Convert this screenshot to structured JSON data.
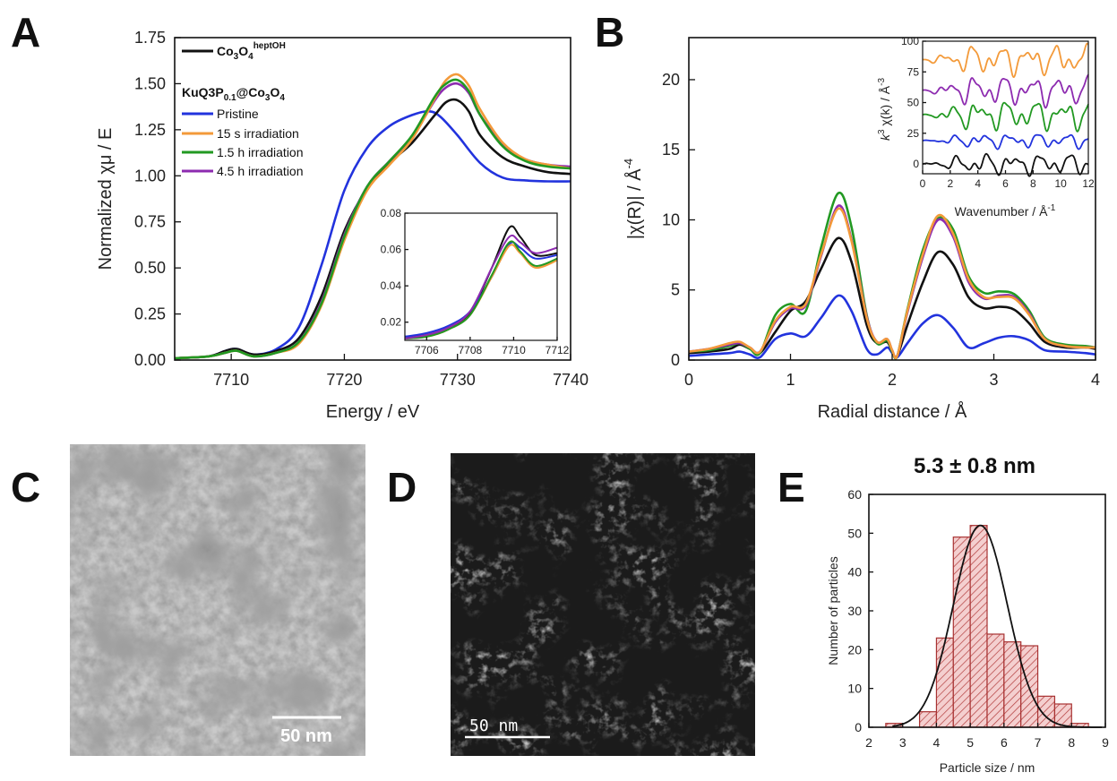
{
  "panels": {
    "A": "A",
    "B": "B",
    "C": "C",
    "D": "D",
    "E": "E"
  },
  "colors": {
    "black": "#111111",
    "blue": "#2233dd",
    "orange": "#f39a3a",
    "green": "#229922",
    "purple": "#8d2bb0",
    "hist_fill": "#f1c9c9",
    "hist_stroke": "#a83232"
  },
  "chart_data": [
    {
      "id": "A",
      "type": "line",
      "xlabel": "Energy / eV",
      "ylabel": "Normalized χμ / E",
      "xlim": [
        7705,
        7740
      ],
      "ylim": [
        0,
        1.75
      ],
      "xticks": [
        7710,
        7720,
        7730,
        7740
      ],
      "yticks": [
        0.0,
        0.25,
        0.5,
        0.75,
        1.0,
        1.25,
        1.5,
        1.75
      ],
      "ytick_labels": [
        "0.00",
        "0.25",
        "0.50",
        "0.75",
        "1.00",
        "1.25",
        "1.50",
        "1.75"
      ],
      "legend": {
        "ref_main": "Co",
        "ref_sub1": "3",
        "ref_mid": "O",
        "ref_sub2": "4",
        "ref_sup": "heptOH",
        "group_main": "KuQ3P",
        "group_sub1": "0.1",
        "group_mid": "@Co",
        "group_sub2": "3",
        "group_end": "O",
        "group_sub3": "4",
        "items": [
          "Pristine",
          "15 s irradiation",
          "1.5 h irradiation",
          "4.5 h irradiation"
        ]
      },
      "series": [
        {
          "name": "Co3O4 heptOH",
          "color": "black",
          "x": [
            7705,
            7708,
            7709.5,
            7710.5,
            7712,
            7714,
            7716,
            7718,
            7720,
            7722,
            7724,
            7726,
            7728,
            7729,
            7730,
            7731,
            7732,
            7734,
            7736,
            7738,
            7740
          ],
          "y": [
            0.01,
            0.02,
            0.05,
            0.06,
            0.03,
            0.05,
            0.12,
            0.35,
            0.7,
            0.93,
            1.07,
            1.18,
            1.33,
            1.4,
            1.41,
            1.35,
            1.22,
            1.1,
            1.05,
            1.02,
            1.01
          ]
        },
        {
          "name": "Pristine",
          "color": "blue",
          "x": [
            7705,
            7708,
            7709.5,
            7710.5,
            7712,
            7714,
            7716,
            7718,
            7720,
            7722,
            7724,
            7726,
            7727.5,
            7728.5,
            7730,
            7732,
            7734,
            7736,
            7738,
            7740
          ],
          "y": [
            0.01,
            0.02,
            0.05,
            0.06,
            0.03,
            0.06,
            0.18,
            0.52,
            0.92,
            1.15,
            1.27,
            1.33,
            1.35,
            1.32,
            1.22,
            1.07,
            0.99,
            0.975,
            0.97,
            0.97
          ]
        },
        {
          "name": "15 s irradiation",
          "color": "orange",
          "x": [
            7705,
            7708,
            7709.5,
            7710.5,
            7712,
            7714,
            7716,
            7718,
            7720,
            7722,
            7724,
            7726,
            7728,
            7729,
            7730,
            7731,
            7732,
            7734,
            7736,
            7738,
            7740
          ],
          "y": [
            0.01,
            0.02,
            0.04,
            0.05,
            0.02,
            0.04,
            0.09,
            0.3,
            0.65,
            0.92,
            1.06,
            1.2,
            1.42,
            1.52,
            1.55,
            1.49,
            1.36,
            1.18,
            1.09,
            1.06,
            1.04
          ]
        },
        {
          "name": "1.5 h irradiation",
          "color": "green",
          "x": [
            7705,
            7708,
            7709.5,
            7710.5,
            7712,
            7714,
            7716,
            7718,
            7720,
            7722,
            7724,
            7726,
            7728,
            7729,
            7730,
            7731,
            7732,
            7734,
            7736,
            7738,
            7740
          ],
          "y": [
            0.01,
            0.02,
            0.04,
            0.05,
            0.02,
            0.04,
            0.1,
            0.31,
            0.67,
            0.94,
            1.08,
            1.22,
            1.43,
            1.5,
            1.52,
            1.46,
            1.33,
            1.16,
            1.08,
            1.05,
            1.04
          ]
        },
        {
          "name": "4.5 h irradiation",
          "color": "purple",
          "x": [
            7705,
            7708,
            7709.5,
            7710.5,
            7712,
            7714,
            7716,
            7718,
            7720,
            7722,
            7724,
            7726,
            7728,
            7729,
            7730,
            7731,
            7732,
            7734,
            7736,
            7738,
            7740
          ],
          "y": [
            0.01,
            0.02,
            0.04,
            0.05,
            0.02,
            0.04,
            0.1,
            0.32,
            0.68,
            0.94,
            1.08,
            1.21,
            1.41,
            1.48,
            1.5,
            1.45,
            1.33,
            1.17,
            1.09,
            1.06,
            1.05
          ]
        }
      ],
      "inset": {
        "xlim": [
          7705,
          7712
        ],
        "ylim": [
          0.01,
          0.08
        ],
        "xticks": [
          7706,
          7708,
          7710,
          7712
        ],
        "yticks": [
          0.02,
          0.04,
          0.06,
          0.08
        ],
        "ytick_labels": [
          "0.02",
          "0.04",
          "0.06",
          "0.08"
        ],
        "series": [
          {
            "color": "black",
            "x": [
              7705,
              7706,
              7707,
              7708,
              7709,
              7709.8,
              7710.3,
              7711,
              7712
            ],
            "y": [
              0.012,
              0.013,
              0.017,
              0.025,
              0.05,
              0.072,
              0.067,
              0.057,
              0.058
            ]
          },
          {
            "color": "blue",
            "x": [
              7705,
              7706,
              7707,
              7708,
              7709,
              7709.8,
              7710.3,
              7711,
              7712
            ],
            "y": [
              0.012,
              0.014,
              0.018,
              0.026,
              0.045,
              0.063,
              0.061,
              0.055,
              0.057
            ]
          },
          {
            "color": "orange",
            "x": [
              7705,
              7706,
              7707,
              7708,
              7709,
              7709.8,
              7710.3,
              7711,
              7712
            ],
            "y": [
              0.011,
              0.012,
              0.016,
              0.024,
              0.045,
              0.062,
              0.058,
              0.05,
              0.054
            ]
          },
          {
            "color": "green",
            "x": [
              7705,
              7706,
              7707,
              7708,
              7709,
              7709.8,
              7710.3,
              7711,
              7712
            ],
            "y": [
              0.011,
              0.012,
              0.016,
              0.024,
              0.046,
              0.064,
              0.059,
              0.051,
              0.055
            ]
          },
          {
            "color": "purple",
            "x": [
              7705,
              7706,
              7707,
              7708,
              7709,
              7709.8,
              7710.3,
              7711,
              7712
            ],
            "y": [
              0.011,
              0.013,
              0.017,
              0.026,
              0.05,
              0.067,
              0.064,
              0.058,
              0.061
            ]
          }
        ]
      }
    },
    {
      "id": "B",
      "type": "line",
      "xlabel": "Radial distance / Å",
      "ylabel_main": "|χ(R)| / Å",
      "ylabel_sup": "-4",
      "xlim": [
        0,
        4
      ],
      "ylim": [
        0,
        23
      ],
      "xticks": [
        0,
        1,
        2,
        3,
        4
      ],
      "yticks": [
        0,
        5,
        10,
        15,
        20
      ],
      "series": [
        {
          "name": "black",
          "color": "black",
          "x": [
            0,
            0.2,
            0.4,
            0.5,
            0.6,
            0.7,
            0.85,
            1.0,
            1.15,
            1.3,
            1.47,
            1.6,
            1.75,
            1.85,
            1.95,
            2.0,
            2.05,
            2.15,
            2.3,
            2.45,
            2.6,
            2.75,
            2.9,
            3.05,
            3.2,
            3.35,
            3.5,
            3.7,
            3.9,
            4.0
          ],
          "y": [
            0.5,
            0.6,
            0.8,
            1.1,
            0.8,
            0.5,
            2.0,
            3.5,
            4.2,
            6.5,
            8.7,
            7.0,
            2.5,
            1.2,
            1.3,
            0.6,
            0.3,
            2.5,
            5.5,
            7.7,
            6.8,
            4.5,
            3.7,
            3.8,
            3.6,
            2.6,
            1.3,
            0.9,
            0.9,
            0.8
          ]
        },
        {
          "name": "blue",
          "color": "blue",
          "x": [
            0,
            0.2,
            0.4,
            0.5,
            0.6,
            0.7,
            0.85,
            1.0,
            1.15,
            1.3,
            1.47,
            1.6,
            1.75,
            1.85,
            1.95,
            2.0,
            2.05,
            2.15,
            2.3,
            2.45,
            2.6,
            2.75,
            2.9,
            3.05,
            3.2,
            3.35,
            3.5,
            3.7,
            3.9,
            4.0
          ],
          "y": [
            0.3,
            0.4,
            0.5,
            0.6,
            0.4,
            0.2,
            1.5,
            1.9,
            1.7,
            3.0,
            4.6,
            3.5,
            0.8,
            0.4,
            0.9,
            0.5,
            0.2,
            1.2,
            2.6,
            3.2,
            2.3,
            0.9,
            1.2,
            1.6,
            1.7,
            1.4,
            0.7,
            0.6,
            0.5,
            0.4
          ]
        },
        {
          "name": "orange",
          "color": "orange",
          "x": [
            0,
            0.2,
            0.4,
            0.5,
            0.6,
            0.7,
            0.85,
            1.0,
            1.15,
            1.3,
            1.47,
            1.6,
            1.75,
            1.85,
            1.95,
            2.0,
            2.05,
            2.15,
            2.3,
            2.45,
            2.6,
            2.75,
            2.9,
            3.05,
            3.2,
            3.35,
            3.5,
            3.7,
            3.9,
            4.0
          ],
          "y": [
            0.6,
            0.8,
            1.2,
            1.3,
            0.9,
            0.6,
            2.8,
            3.8,
            4.0,
            7.5,
            10.8,
            8.5,
            3.0,
            1.3,
            1.5,
            0.7,
            0.3,
            3.5,
            7.5,
            10.3,
            9.0,
            5.8,
            4.5,
            4.5,
            4.4,
            3.2,
            1.5,
            1.0,
            0.9,
            0.9
          ]
        },
        {
          "name": "green",
          "color": "green",
          "x": [
            0,
            0.2,
            0.4,
            0.5,
            0.6,
            0.7,
            0.85,
            1.0,
            1.15,
            1.3,
            1.47,
            1.6,
            1.75,
            1.85,
            1.95,
            2.0,
            2.05,
            2.15,
            2.3,
            2.45,
            2.6,
            2.75,
            2.9,
            3.05,
            3.2,
            3.35,
            3.5,
            3.7,
            3.9,
            4.0
          ],
          "y": [
            0.6,
            0.7,
            1.0,
            1.2,
            0.8,
            0.5,
            3.2,
            4.0,
            3.5,
            8.0,
            11.9,
            9.5,
            3.2,
            1.2,
            1.4,
            0.6,
            0.3,
            3.6,
            7.8,
            10.1,
            9.3,
            6.0,
            4.8,
            4.9,
            4.7,
            3.5,
            1.6,
            1.1,
            1.0,
            0.9
          ]
        },
        {
          "name": "purple",
          "color": "purple",
          "x": [
            0,
            0.2,
            0.4,
            0.5,
            0.6,
            0.7,
            0.85,
            1.0,
            1.15,
            1.3,
            1.47,
            1.6,
            1.75,
            1.85,
            1.95,
            2.0,
            2.05,
            2.15,
            2.3,
            2.45,
            2.6,
            2.75,
            2.9,
            3.05,
            3.2,
            3.35,
            3.5,
            3.7,
            3.9,
            4.0
          ],
          "y": [
            0.6,
            0.8,
            1.1,
            1.2,
            0.9,
            0.6,
            2.7,
            3.7,
            3.9,
            7.4,
            11.0,
            8.6,
            3.1,
            1.3,
            1.5,
            0.7,
            0.3,
            3.4,
            7.3,
            10.0,
            8.8,
            5.6,
            4.4,
            4.6,
            4.5,
            3.3,
            1.5,
            1.0,
            0.9,
            0.9
          ]
        }
      ],
      "inset": {
        "xlabel_main": "Wavenumber / Å",
        "xlabel_sup": "-1",
        "ylabel_k": "k",
        "ylabel_sup": "3",
        "ylabel_rest": " χ(k) / Å",
        "ylabel_sup2": "-3",
        "xlim": [
          0,
          12
        ],
        "ylim": [
          -8,
          100
        ],
        "xticks": [
          0,
          2,
          4,
          6,
          8,
          10,
          12
        ],
        "yticks": [
          0,
          25,
          50,
          75,
          100
        ],
        "offsets": [
          {
            "color": "black",
            "base": 0,
            "amp": 5
          },
          {
            "color": "blue",
            "base": 19,
            "amp": 3.5
          },
          {
            "color": "green",
            "base": 40,
            "amp": 7
          },
          {
            "color": "purple",
            "base": 60,
            "amp": 7
          },
          {
            "color": "orange",
            "base": 85,
            "amp": 7
          }
        ]
      }
    },
    {
      "id": "E",
      "type": "bar",
      "title": "5.3 ± 0.8 nm",
      "xlabel": "Particle size / nm",
      "ylabel": "Number of particles",
      "xlim": [
        2,
        9
      ],
      "ylim": [
        0,
        60
      ],
      "xticks": [
        2,
        3,
        4,
        5,
        6,
        7,
        8,
        9
      ],
      "yticks": [
        0,
        10,
        20,
        30,
        40,
        50,
        60
      ],
      "bin_edges": [
        2.5,
        3.0,
        3.5,
        4.0,
        4.5,
        5.0,
        5.5,
        6.0,
        6.5,
        7.0,
        7.5,
        8.0,
        8.5
      ],
      "counts": [
        1,
        0,
        4,
        23,
        49,
        52,
        24,
        22,
        21,
        8,
        6,
        1
      ],
      "fit": {
        "mean": 5.3,
        "sigma": 0.8,
        "peak": 52
      }
    }
  ],
  "images": {
    "C": {
      "scale_label": "50 nm"
    },
    "D": {
      "scale_label": "50 nm"
    }
  }
}
